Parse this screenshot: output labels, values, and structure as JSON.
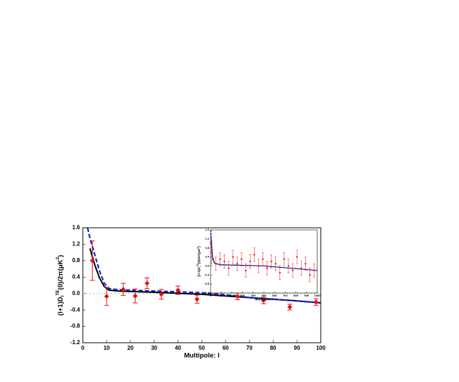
{
  "chart_data": [
    {
      "type": "scatter",
      "xlabel": "Multipole: l",
      "ylabel": {
        "main": "(l+1)D",
        "sub": "l",
        "sup": "TE",
        "rest": "(0)/2π(μK",
        "sup2": "2",
        "end": ")"
      },
      "xlim": [
        0,
        100
      ],
      "xticks": [
        0,
        10,
        20,
        30,
        40,
        50,
        60,
        70,
        80,
        90,
        100
      ],
      "ylim": [
        -1.2,
        1.6
      ],
      "yticks": [
        -1.2,
        -0.8,
        -0.4,
        {
          "value": 0,
          "label": "0.0"
        },
        0.4,
        0.8,
        1.2,
        1.6
      ],
      "hline": 0,
      "hline_color": "#66dd66",
      "points": {
        "color": "#e81010",
        "x": [
          4,
          10,
          17,
          22,
          27,
          33,
          40,
          48,
          56,
          65,
          76,
          87,
          98
        ],
        "values": [
          0.8,
          -0.07,
          0.1,
          -0.06,
          0.25,
          -0.02,
          0.08,
          -0.14,
          0.13,
          -0.07,
          -0.17,
          -0.33,
          -0.21
        ],
        "errors": [
          0.48,
          0.22,
          0.15,
          0.17,
          0.13,
          0.12,
          0.1,
          0.1,
          0.13,
          0.08,
          0.08,
          0.07,
          0.08
        ]
      },
      "lines": [
        {
          "color": "#000000",
          "style": "solid",
          "x": [
            3,
            5,
            7,
            9,
            11,
            15,
            30,
            50,
            70,
            90,
            100
          ],
          "values": [
            1.1,
            0.7,
            0.38,
            0.17,
            0.08,
            0.06,
            0.03,
            -0.02,
            -0.1,
            -0.18,
            -0.23
          ]
        },
        {
          "color": "#1020e0",
          "style": "dashed",
          "x": [
            2,
            3,
            5,
            7,
            9,
            11,
            15,
            30,
            50,
            65,
            70,
            90,
            100
          ],
          "values": [
            1.6,
            1.35,
            0.95,
            0.55,
            0.25,
            0.12,
            0.09,
            0.06,
            0.02,
            -0.06,
            -0.1,
            -0.18,
            -0.23
          ]
        }
      ]
    },
    {
      "type": "scatter",
      "xlabel": "Multipole: l",
      "ylabel": {
        "main": "(l+1)D",
        "sub": "l",
        "sup": "TE",
        "rest": "(0)/2π(μK",
        "sup2": "2",
        "end": ")"
      },
      "xlim": [
        0,
        1000
      ],
      "xticks": [
        0,
        100,
        200,
        300,
        400,
        500,
        600,
        700,
        800,
        900,
        1000
      ],
      "ylim": [
        -1.2,
        1.6
      ],
      "yticks": [
        -1.2,
        -0.8,
        -0.4,
        {
          "value": 0,
          "label": "0.0"
        },
        0.4,
        0.8,
        1.2,
        1.6
      ],
      "points": {
        "color": "#e81010",
        "x": [
          10,
          50,
          90,
          130,
          170,
          210,
          250,
          290,
          330,
          370,
          410,
          450,
          490,
          530,
          570,
          610,
          650,
          690,
          730,
          770,
          810,
          850,
          890,
          930,
          970
        ],
        "values": [
          0.6,
          0.1,
          0.3,
          0.2,
          -0.1,
          0.4,
          0.1,
          0.3,
          -0.2,
          0.2,
          0.5,
          0.0,
          0.3,
          -0.1,
          0.2,
          0.1,
          -0.3,
          0.3,
          0.0,
          -0.2,
          0.4,
          -0.1,
          0.1,
          -0.4,
          -0.2
        ],
        "errors": [
          0.5,
          0.3,
          0.3,
          0.3,
          0.3,
          0.3,
          0.3,
          0.3,
          0.3,
          0.3,
          0.3,
          0.3,
          0.3,
          0.3,
          0.3,
          0.3,
          0.3,
          0.3,
          0.3,
          0.3,
          0.3,
          0.3,
          0.3,
          0.3,
          0.3
        ]
      },
      "lines": [
        {
          "color": "#000000",
          "style": "solid",
          "x": [
            5,
            20,
            40,
            100,
            500,
            1000
          ],
          "values": [
            1.1,
            0.3,
            0.1,
            0.05,
            0.0,
            -0.2
          ]
        },
        {
          "color": "#1020e0",
          "style": "dashed",
          "x": [
            3,
            20,
            40,
            100,
            500,
            1000
          ],
          "values": [
            1.6,
            0.4,
            0.12,
            0.06,
            0.0,
            -0.2
          ]
        }
      ]
    }
  ]
}
